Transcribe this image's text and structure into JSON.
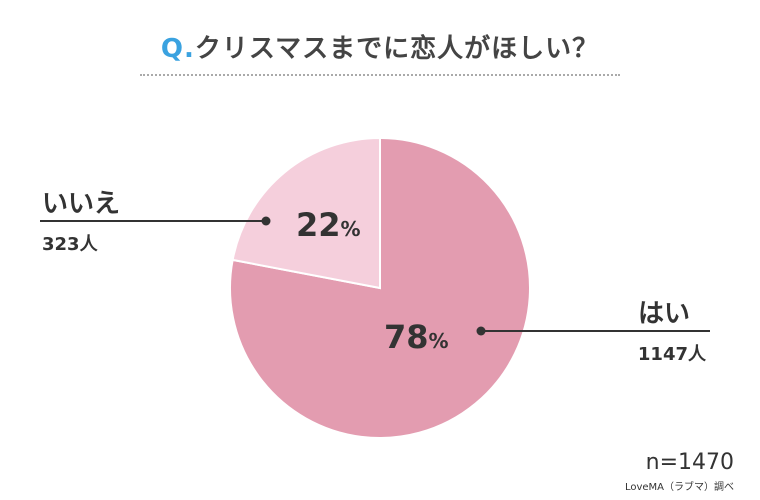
{
  "title": {
    "prefix": "Q.",
    "text": "クリスマスまでに恋人がほしい？"
  },
  "chart_data": {
    "type": "pie",
    "total_label": "n=1470",
    "total": 1470,
    "slices": [
      {
        "label": "はい",
        "percent": 78,
        "percent_number": "78",
        "percent_sign": "%",
        "count_label": "1147人",
        "count": 1147,
        "color": "#e39cb0"
      },
      {
        "label": "いいえ",
        "percent": 22,
        "percent_number": "22",
        "percent_sign": "%",
        "count_label": "323人",
        "count": 323,
        "color": "#f5cfdc"
      }
    ],
    "start": "12 o'clock",
    "direction": "clockwise",
    "legend": "none"
  },
  "source": "LoveMA（ラブマ）調べ",
  "colors": {
    "title_accent": "#3aa2e0",
    "text": "#333333",
    "slice_edge": "#ffffff"
  }
}
